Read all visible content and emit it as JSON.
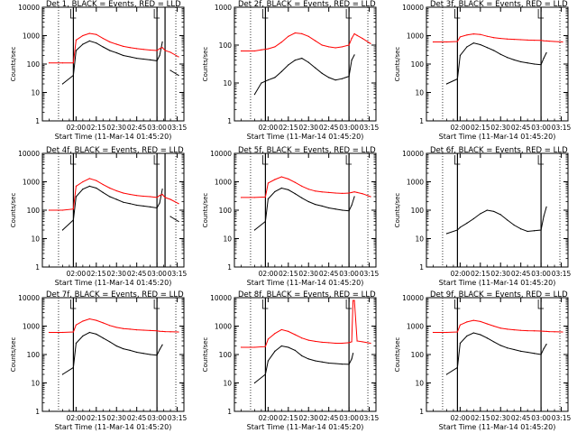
{
  "chart_data": [
    {
      "type": "line",
      "title": "Det 1, BLACK = Events, RED = LLD",
      "xlabel": "Start Time (11-Mar-14 01:45:20)",
      "ylabel": "Counts/sec",
      "x_ticks": [
        "02:00",
        "02:15",
        "02:30",
        "02:45",
        "03:00",
        "03:15"
      ],
      "y_ticks": [
        "1",
        "10",
        "100",
        "1000",
        "10000"
      ],
      "ylim": [
        1,
        10000
      ],
      "log_y": true,
      "x": [
        -20,
        -10,
        -2,
        0,
        5,
        10,
        15,
        20,
        25,
        30,
        35,
        40,
        45,
        50,
        55,
        60,
        62,
        64,
        66,
        70,
        76
      ],
      "series": [
        {
          "name": "BLACK = Events",
          "color": "#000000",
          "values": [
            null,
            20,
            40,
            300,
            500,
            650,
            550,
            400,
            300,
            250,
            200,
            180,
            160,
            150,
            140,
            130,
            200,
            600,
            null,
            60,
            40
          ]
        },
        {
          "name": "RED = LLD",
          "color": "#ff0000",
          "values": [
            110,
            110,
            110,
            700,
            1000,
            1200,
            1100,
            800,
            600,
            500,
            420,
            380,
            350,
            330,
            310,
            300,
            350,
            380,
            300,
            260,
            180
          ]
        }
      ],
      "markers_x": [
        -2,
        60,
        66
      ]
    },
    {
      "type": "line",
      "title": "Det 2f, BLACK = Events, RED = LLD",
      "xlabel": "Start Time (11-Mar-14 01:45:20)",
      "ylabel": "Counts/sec",
      "x_ticks": [
        "02:00",
        "02:15",
        "02:30",
        "02:45",
        "03:00",
        "03:15"
      ],
      "y_ticks": [
        "1",
        "10",
        "100",
        "1000"
      ],
      "ylim": [
        1,
        1000
      ],
      "log_y": true,
      "x": [
        -20,
        -10,
        -5,
        0,
        5,
        10,
        15,
        20,
        25,
        30,
        35,
        40,
        45,
        50,
        55,
        60,
        62,
        64,
        66,
        70,
        76
      ],
      "series": [
        {
          "name": "BLACK = Events",
          "color": "#000000",
          "values": [
            null,
            5,
            10,
            12,
            14,
            20,
            30,
            40,
            45,
            35,
            25,
            18,
            14,
            12,
            13,
            15,
            40,
            55,
            null,
            null,
            null
          ]
        },
        {
          "name": "RED = LLD",
          "color": "#ff0000",
          "values": [
            70,
            70,
            75,
            80,
            90,
            120,
            170,
            210,
            200,
            170,
            130,
            100,
            90,
            85,
            90,
            100,
            150,
            200,
            180,
            150,
            110
          ]
        }
      ],
      "markers_x": [
        -2,
        60
      ]
    },
    {
      "type": "line",
      "title": "Det 3f, BLACK = Events, RED = LLD",
      "xlabel": "Start Time (11-Mar-14 01:45:20)",
      "ylabel": "Counts/sec",
      "x_ticks": [
        "02:00",
        "02:15",
        "02:30",
        "02:45",
        "03:00",
        "03:15"
      ],
      "y_ticks": [
        "1",
        "10",
        "100",
        "1000",
        "10000"
      ],
      "ylim": [
        1,
        10000
      ],
      "log_y": true,
      "x": [
        -20,
        -10,
        -2,
        0,
        5,
        10,
        15,
        20,
        25,
        30,
        35,
        40,
        45,
        50,
        55,
        60,
        62,
        64,
        66,
        70,
        76
      ],
      "series": [
        {
          "name": "BLACK = Events",
          "color": "#000000",
          "values": [
            null,
            20,
            30,
            200,
            400,
            550,
            480,
            380,
            300,
            220,
            170,
            140,
            120,
            110,
            100,
            95,
            160,
            250,
            null,
            null,
            null
          ]
        },
        {
          "name": "RED = LLD",
          "color": "#ff0000",
          "values": [
            600,
            600,
            620,
            900,
            1050,
            1150,
            1100,
            950,
            850,
            800,
            760,
            740,
            720,
            700,
            690,
            680,
            660,
            650,
            640,
            620,
            600
          ]
        }
      ],
      "markers_x": [
        -2,
        60
      ]
    },
    {
      "type": "line",
      "title": "Det 4f, BLACK = Events, RED = LLD",
      "xlabel": "Start Time (11-Mar-14 01:45:20)",
      "ylabel": "Counts/sec",
      "x_ticks": [
        "02:00",
        "02:15",
        "02:30",
        "02:45",
        "03:00",
        "03:15"
      ],
      "y_ticks": [
        "1",
        "10",
        "100",
        "1000",
        "10000"
      ],
      "ylim": [
        1,
        10000
      ],
      "log_y": true,
      "x": [
        -20,
        -10,
        -2,
        0,
        5,
        10,
        15,
        20,
        25,
        30,
        35,
        40,
        45,
        50,
        55,
        60,
        62,
        64,
        66,
        70,
        76
      ],
      "series": [
        {
          "name": "BLACK = Events",
          "color": "#000000",
          "values": [
            null,
            20,
            45,
            300,
            550,
            700,
            600,
            420,
            300,
            240,
            190,
            170,
            150,
            140,
            130,
            120,
            180,
            550,
            null,
            60,
            40
          ]
        },
        {
          "name": "RED = LLD",
          "color": "#ff0000",
          "values": [
            100,
            100,
            110,
            700,
            1000,
            1300,
            1100,
            800,
            600,
            480,
            400,
            360,
            330,
            310,
            300,
            280,
            330,
            360,
            280,
            240,
            170
          ]
        }
      ],
      "markers_x": [
        -2,
        60,
        66
      ]
    },
    {
      "type": "line",
      "title": "Det 5f, BLACK = Events, RED = LLD",
      "xlabel": "Start Time (11-Mar-14 01:45:20)",
      "ylabel": "Counts/sec",
      "x_ticks": [
        "02:00",
        "02:15",
        "02:30",
        "02:45",
        "03:00",
        "03:15"
      ],
      "y_ticks": [
        "1",
        "10",
        "100",
        "1000",
        "10000"
      ],
      "ylim": [
        1,
        10000
      ],
      "log_y": true,
      "x": [
        -20,
        -10,
        -2,
        0,
        5,
        10,
        15,
        20,
        25,
        30,
        35,
        40,
        45,
        50,
        55,
        60,
        62,
        64,
        66,
        70,
        76
      ],
      "series": [
        {
          "name": "BLACK = Events",
          "color": "#000000",
          "values": [
            null,
            20,
            40,
            250,
            450,
            600,
            520,
            380,
            270,
            200,
            160,
            140,
            120,
            110,
            100,
            95,
            150,
            300,
            null,
            null,
            null
          ]
        },
        {
          "name": "RED = LLD",
          "color": "#ff0000",
          "values": [
            280,
            280,
            290,
            900,
            1200,
            1500,
            1250,
            950,
            700,
            550,
            470,
            440,
            420,
            400,
            390,
            400,
            420,
            440,
            420,
            380,
            300
          ]
        }
      ],
      "markers_x": [
        -2,
        60
      ]
    },
    {
      "type": "line",
      "title": "Det 6f, BLACK = Events, RED = LLD",
      "xlabel": "Start Time (11-Mar-14 01:45:20)",
      "ylabel": "Counts/sec",
      "x_ticks": [
        "02:00",
        "02:15",
        "02:30",
        "02:45",
        "03:00",
        "03:15"
      ],
      "y_ticks": [
        "1",
        "10",
        "100",
        "1000",
        "10000"
      ],
      "ylim": [
        1,
        10000
      ],
      "log_y": true,
      "x": [
        -20,
        -10,
        -2,
        0,
        5,
        10,
        15,
        20,
        25,
        30,
        35,
        40,
        45,
        50,
        55,
        60,
        62,
        64,
        66,
        70,
        76
      ],
      "series": [
        {
          "name": "BLACK = Events",
          "color": "#000000",
          "values": [
            null,
            15,
            20,
            25,
            35,
            50,
            75,
            100,
            90,
            70,
            45,
            30,
            22,
            18,
            19,
            20,
            60,
            130,
            null,
            null,
            null
          ]
        }
      ],
      "markers_x": [
        -2,
        60
      ]
    },
    {
      "type": "line",
      "title": "Det 7f, BLACK = Events, RED = LLD",
      "xlabel": "Start Time (11-Mar-14 01:45:20)",
      "ylabel": "Counts/sec",
      "x_ticks": [
        "02:00",
        "02:15",
        "02:30",
        "02:45",
        "03:00",
        "03:15"
      ],
      "y_ticks": [
        "1",
        "10",
        "100",
        "1000",
        "10000"
      ],
      "ylim": [
        1,
        10000
      ],
      "log_y": true,
      "x": [
        -20,
        -10,
        -2,
        0,
        5,
        10,
        15,
        20,
        25,
        30,
        35,
        40,
        45,
        50,
        55,
        60,
        62,
        64,
        66,
        70,
        76
      ],
      "series": [
        {
          "name": "BLACK = Events",
          "color": "#000000",
          "values": [
            null,
            20,
            35,
            250,
            450,
            600,
            520,
            380,
            280,
            200,
            160,
            140,
            120,
            110,
            100,
            95,
            150,
            220,
            null,
            null,
            null
          ]
        },
        {
          "name": "RED = LLD",
          "color": "#ff0000",
          "values": [
            600,
            600,
            620,
            1100,
            1500,
            1800,
            1600,
            1300,
            1050,
            900,
            820,
            780,
            740,
            720,
            700,
            680,
            660,
            650,
            640,
            630,
            620
          ]
        }
      ],
      "markers_x": [
        -2,
        60
      ]
    },
    {
      "type": "line",
      "title": "Det 8f, BLACK = Events, RED = LLD",
      "xlabel": "Start Time (11-Mar-14 01:45:20)",
      "ylabel": "Counts/sec",
      "x_ticks": [
        "02:00",
        "02:15",
        "02:30",
        "02:45",
        "03:00",
        "03:15"
      ],
      "y_ticks": [
        "1",
        "10",
        "100",
        "1000",
        "10000"
      ],
      "ylim": [
        1,
        10000
      ],
      "log_y": true,
      "x": [
        -20,
        -10,
        -2,
        0,
        5,
        10,
        15,
        20,
        25,
        30,
        35,
        40,
        45,
        50,
        55,
        60,
        62,
        63,
        64,
        66,
        70,
        76
      ],
      "series": [
        {
          "name": "BLACK = Events",
          "color": "#000000",
          "values": [
            null,
            10,
            20,
            60,
            130,
            200,
            180,
            140,
            90,
            70,
            60,
            55,
            50,
            48,
            46,
            45,
            70,
            110,
            null,
            null,
            null,
            null
          ]
        },
        {
          "name": "RED = LLD",
          "color": "#ff0000",
          "values": [
            180,
            180,
            190,
            350,
            550,
            750,
            650,
            500,
            380,
            320,
            290,
            270,
            260,
            250,
            250,
            260,
            280,
            8000,
            8000,
            300,
            280,
            250
          ]
        }
      ],
      "markers_x": [
        -2,
        60
      ]
    },
    {
      "type": "line",
      "title": "Det 9f, BLACK = Events, RED = LLD",
      "xlabel": "Start Time (11-Mar-14 01:45:20)",
      "ylabel": "Counts/sec",
      "x_ticks": [
        "02:00",
        "02:15",
        "02:30",
        "02:45",
        "03:00",
        "03:15"
      ],
      "y_ticks": [
        "1",
        "10",
        "100",
        "1000",
        "10000"
      ],
      "ylim": [
        1,
        10000
      ],
      "log_y": true,
      "x": [
        -20,
        -10,
        -2,
        0,
        5,
        10,
        15,
        20,
        25,
        30,
        35,
        40,
        45,
        50,
        55,
        60,
        62,
        64,
        66,
        70,
        76
      ],
      "series": [
        {
          "name": "BLACK = Events",
          "color": "#000000",
          "values": [
            null,
            20,
            35,
            250,
            450,
            580,
            500,
            380,
            280,
            210,
            170,
            150,
            130,
            120,
            110,
            100,
            160,
            230,
            null,
            null,
            null
          ]
        },
        {
          "name": "RED = LLD",
          "color": "#ff0000",
          "values": [
            600,
            600,
            620,
            1100,
            1400,
            1600,
            1450,
            1200,
            1000,
            850,
            780,
            740,
            710,
            690,
            680,
            670,
            660,
            650,
            640,
            630,
            620
          ]
        }
      ],
      "markers_x": [
        -2,
        60
      ]
    }
  ]
}
